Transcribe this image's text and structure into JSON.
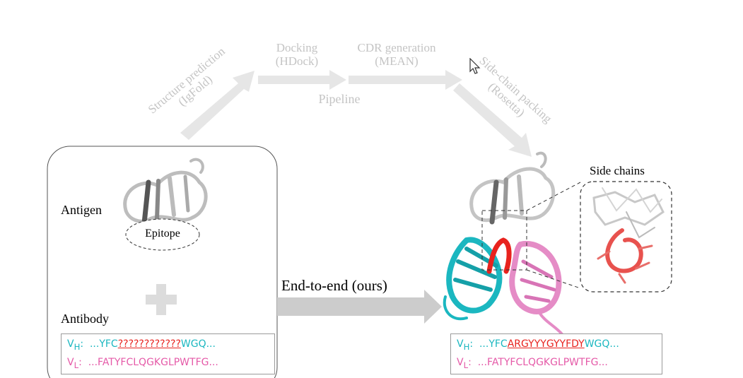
{
  "pipeline": {
    "label": "Pipeline",
    "steps": [
      {
        "name": "Structure prediction",
        "tool": "(IgFold)"
      },
      {
        "name": "Docking",
        "tool": "(HDock)"
      },
      {
        "name": "CDR generation",
        "tool": "(MEAN)"
      },
      {
        "name": "Side-chain packing",
        "tool": "(Rosetta)"
      }
    ]
  },
  "input": {
    "antigen_label": "Antigen",
    "epitope_label": "Epitope",
    "antibody_label": "Antibody",
    "vh": {
      "prefix": "V",
      "sub": "H",
      "colon": ":",
      "left": "...YFC",
      "masked": "????????????",
      "right": "WGQ..."
    },
    "vl": {
      "prefix": "V",
      "sub": "L",
      "colon": ":",
      "seq": "...FATYFCLQGKGLPWTFG..."
    }
  },
  "method_label": "End-to-end (ours)",
  "output": {
    "side_chains_label": "Side chains",
    "vh": {
      "prefix": "V",
      "sub": "H",
      "colon": ":",
      "left": "...YFC",
      "generated": "ARGYYYGYYFDY",
      "right": "WGQ..."
    },
    "vl": {
      "prefix": "V",
      "sub": "L",
      "colon": ":",
      "seq": "...FATYFCLQGKGLPWTFG..."
    }
  },
  "colors": {
    "heavy_chain": "#1bb7c0",
    "light_chain": "#e55aa8",
    "cdr": "#e8231e",
    "pipeline_arrow": "#e6e6e6",
    "main_arrow": "#cccccc"
  }
}
